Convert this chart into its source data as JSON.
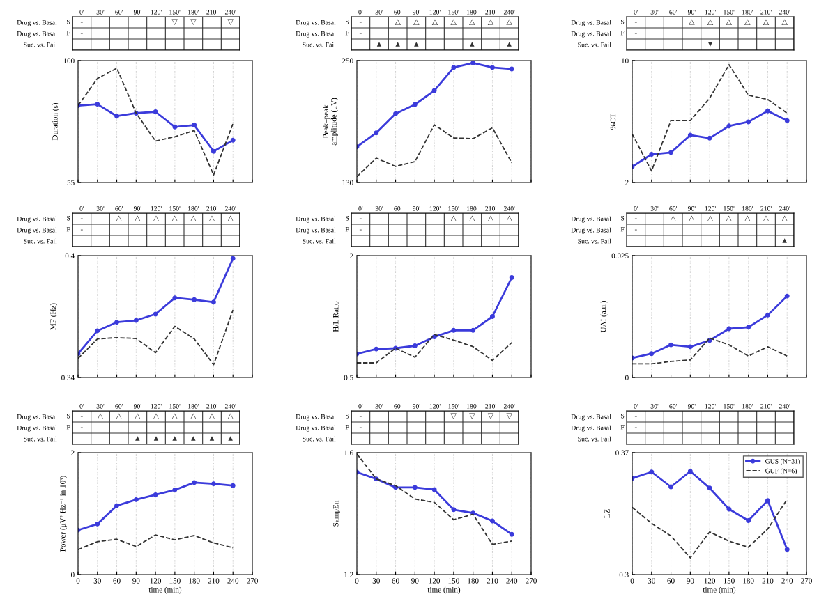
{
  "chart_data": [
    {
      "type": "heatmap",
      "categories": [
        "0'",
        "30'",
        "60'",
        "90'",
        "120'",
        "150'",
        "180'",
        "210'",
        "240'"
      ],
      "y_categories": [
        "Drug vs. Basal",
        "Drug vs. Basal",
        "Suc. vs. Fail"
      ],
      "y2_categories": [
        "S",
        "F",
        null
      ],
      "cells": [
        [
          null,
          null,
          null,
          null,
          null,
          null,
          null,
          null,
          null
        ],
        [
          null,
          null,
          null,
          null,
          null,
          null,
          null,
          null,
          null
        ],
        [
          null,
          null,
          null,
          null,
          null,
          null,
          null,
          null,
          null
        ]
      ],
      "cell_labels": [
        [
          "-",
          null,
          null,
          null,
          null,
          "▽",
          "▽",
          null,
          "▽"
        ],
        [
          "-",
          null,
          null,
          null,
          null,
          null,
          null,
          null,
          null
        ],
        [
          null,
          null,
          null,
          null,
          null,
          null,
          null,
          null,
          null
        ]
      ]
    },
    {
      "type": "line",
      "x": [
        0,
        30,
        60,
        90,
        120,
        150,
        180,
        210,
        240
      ],
      "ylabel": "Duration (s)",
      "xlim": [
        0,
        270
      ],
      "xticks": [
        0,
        30,
        60,
        90,
        120,
        150,
        180,
        210,
        240,
        270
      ],
      "ylim": [
        55,
        100
      ],
      "yticks": [
        55,
        100
      ],
      "grid": "x",
      "tick_labels": "y",
      "series": [
        {
          "color": "#3b3bdb",
          "marker": "circle",
          "line_style": "solid",
          "values": [
            83.4,
            83.9,
            79.5,
            80.6,
            81.1,
            75.5,
            76.2,
            66.5,
            70.6
          ]
        },
        {
          "color": "#333333",
          "marker": "none",
          "line_style": "dashed",
          "values": [
            83.4,
            93.4,
            97.2,
            80.6,
            70.3,
            71.9,
            74.2,
            57.8,
            76.7
          ]
        }
      ]
    },
    {
      "type": "heatmap",
      "categories": [
        "0'",
        "30'",
        "60'",
        "90'",
        "120'",
        "150'",
        "180'",
        "210'",
        "240'"
      ],
      "y_categories": [
        "Drug vs. Basal",
        "Drug vs. Basal",
        "Suc. vs. Fail"
      ],
      "y2_categories": [
        "S",
        "F",
        null
      ],
      "cells": [
        [
          null,
          null,
          null,
          null,
          null,
          null,
          null,
          null,
          null
        ],
        [
          null,
          null,
          null,
          null,
          null,
          null,
          null,
          null,
          null
        ],
        [
          null,
          null,
          null,
          null,
          null,
          null,
          null,
          null,
          null
        ]
      ],
      "cell_labels": [
        [
          "-",
          null,
          "△",
          "△",
          "△",
          "△",
          "△",
          "△",
          "△"
        ],
        [
          "-",
          null,
          null,
          null,
          null,
          null,
          null,
          null,
          null
        ],
        [
          null,
          "▲",
          "▲",
          "▲",
          null,
          null,
          "▲",
          null,
          "▲"
        ]
      ]
    },
    {
      "type": "line",
      "x": [
        0,
        30,
        60,
        90,
        120,
        150,
        180,
        210,
        240
      ],
      "ylabel": "Peak–peak\namplitude (μV)",
      "xlim": [
        0,
        270
      ],
      "xticks": [
        0,
        30,
        60,
        90,
        120,
        150,
        180,
        210,
        240,
        270
      ],
      "ylim": [
        130,
        250
      ],
      "yticks": [
        130,
        250
      ],
      "grid": "x",
      "tick_labels": "y",
      "series": [
        {
          "color": "#3b3bdb",
          "marker": "circle",
          "line_style": "solid",
          "values": [
            165.2,
            178.9,
            197.7,
            206.8,
            220.5,
            243.2,
            247.7,
            243.2,
            241.8
          ]
        },
        {
          "color": "#333333",
          "marker": "none",
          "line_style": "dashed",
          "values": [
            135.7,
            153.9,
            145.9,
            150.5,
            186.8,
            173.9,
            173.2,
            183.9,
            149.3
          ]
        }
      ]
    },
    {
      "type": "heatmap",
      "categories": [
        "0'",
        "30'",
        "60'",
        "90'",
        "120'",
        "150'",
        "180'",
        "210'",
        "240'"
      ],
      "y_categories": [
        "Drug vs. Basal",
        "Drug vs. Basal",
        "Suc. vs. Fail"
      ],
      "y2_categories": [
        "S",
        "F",
        null
      ],
      "cells": [
        [
          null,
          null,
          null,
          null,
          null,
          null,
          null,
          null,
          null
        ],
        [
          null,
          null,
          null,
          null,
          null,
          null,
          null,
          null,
          null
        ],
        [
          null,
          null,
          null,
          null,
          null,
          null,
          null,
          null,
          null
        ]
      ],
      "cell_labels": [
        [
          "-",
          null,
          null,
          "△",
          "△",
          "△",
          "△",
          "△",
          "△"
        ],
        [
          "-",
          null,
          null,
          null,
          null,
          null,
          null,
          null,
          null
        ],
        [
          null,
          null,
          null,
          null,
          "▼",
          null,
          null,
          null,
          null
        ]
      ]
    },
    {
      "type": "line",
      "x": [
        0,
        30,
        60,
        90,
        120,
        150,
        180,
        210,
        240
      ],
      "ylabel": "%CT",
      "xlim": [
        0,
        270
      ],
      "xticks": [
        0,
        30,
        60,
        90,
        120,
        150,
        180,
        210,
        240,
        270
      ],
      "ylim": [
        2,
        10
      ],
      "yticks": [
        2,
        10
      ],
      "grid": "x",
      "tick_labels": "y",
      "series": [
        {
          "color": "#3b3bdb",
          "marker": "circle",
          "line_style": "solid",
          "values": [
            3.03,
            3.85,
            3.97,
            5.11,
            4.91,
            5.71,
            5.98,
            6.7,
            6.06
          ]
        },
        {
          "color": "#333333",
          "marker": "none",
          "line_style": "dashed",
          "values": [
            5.18,
            2.76,
            6.06,
            6.06,
            7.53,
            9.73,
            7.73,
            7.45,
            6.55
          ]
        }
      ]
    },
    {
      "type": "heatmap",
      "categories": [
        "0'",
        "30'",
        "60'",
        "90'",
        "120'",
        "150'",
        "180'",
        "210'",
        "240'"
      ],
      "y_categories": [
        "Drug vs. Basal",
        "Drug vs. Basal",
        "Suc. vs. Fail"
      ],
      "y2_categories": [
        "S",
        "F",
        null
      ],
      "cells": [
        [
          null,
          null,
          null,
          null,
          null,
          null,
          null,
          null,
          null
        ],
        [
          null,
          null,
          null,
          null,
          null,
          null,
          null,
          null,
          null
        ],
        [
          null,
          null,
          null,
          null,
          null,
          null,
          null,
          null,
          null
        ]
      ],
      "cell_labels": [
        [
          "-",
          null,
          "△",
          "△",
          "△",
          "△",
          "△",
          "△",
          "△"
        ],
        [
          "-",
          null,
          null,
          null,
          null,
          null,
          null,
          null,
          null
        ],
        [
          null,
          null,
          null,
          null,
          null,
          null,
          null,
          null,
          null
        ]
      ]
    },
    {
      "type": "line",
      "x": [
        0,
        30,
        60,
        90,
        120,
        150,
        180,
        210,
        240
      ],
      "ylabel": "MF (Hz)",
      "xlim": [
        0,
        270
      ],
      "xticks": [
        0,
        30,
        60,
        90,
        120,
        150,
        180,
        210,
        240,
        270
      ],
      "ylim": [
        0.34,
        0.4
      ],
      "yticks": [
        0.34,
        0.4
      ],
      "grid": "x",
      "tick_labels": "y",
      "series": [
        {
          "color": "#3b3bdb",
          "marker": "circle",
          "line_style": "solid",
          "values": [
            0.3517,
            0.363,
            0.3672,
            0.3681,
            0.3712,
            0.3792,
            0.3783,
            0.3771,
            0.3986
          ]
        },
        {
          "color": "#333333",
          "marker": "none",
          "line_style": "dashed",
          "values": [
            0.3494,
            0.359,
            0.3596,
            0.3592,
            0.3522,
            0.3652,
            0.359,
            0.3463,
            0.3732
          ]
        }
      ]
    },
    {
      "type": "heatmap",
      "categories": [
        "0'",
        "30'",
        "60'",
        "90'",
        "120'",
        "150'",
        "180'",
        "210'",
        "240'"
      ],
      "y_categories": [
        "Drug vs. Basal",
        "Drug vs. Basal",
        "Suc. vs. Fail"
      ],
      "y2_categories": [
        "S",
        "F",
        null
      ],
      "cells": [
        [
          null,
          null,
          null,
          null,
          null,
          null,
          null,
          null,
          null
        ],
        [
          null,
          null,
          null,
          null,
          null,
          null,
          null,
          null,
          null
        ],
        [
          null,
          null,
          null,
          null,
          null,
          null,
          null,
          null,
          null
        ]
      ],
      "cell_labels": [
        [
          "-",
          null,
          null,
          null,
          null,
          "△",
          "△",
          "△",
          "△"
        ],
        [
          "-",
          null,
          null,
          null,
          null,
          null,
          null,
          null,
          null
        ],
        [
          null,
          null,
          null,
          null,
          null,
          null,
          null,
          null,
          null
        ]
      ]
    },
    {
      "type": "line",
      "x": [
        0,
        30,
        60,
        90,
        120,
        150,
        180,
        210,
        240
      ],
      "ylabel": "H/L Ratio",
      "xlim": [
        0,
        270
      ],
      "xticks": [
        0,
        30,
        60,
        90,
        120,
        150,
        180,
        210,
        240,
        270
      ],
      "ylim": [
        0.5,
        2
      ],
      "yticks": [
        0.5,
        2
      ],
      "grid": "x",
      "tick_labels": "y",
      "series": [
        {
          "color": "#3b3bdb",
          "marker": "circle",
          "line_style": "solid",
          "values": [
            0.79,
            0.85,
            0.86,
            0.89,
            1.0,
            1.08,
            1.08,
            1.25,
            1.73
          ]
        },
        {
          "color": "#333333",
          "marker": "none",
          "line_style": "dashed",
          "values": [
            0.68,
            0.68,
            0.86,
            0.75,
            1.03,
            0.96,
            0.88,
            0.71,
            0.93
          ]
        }
      ]
    },
    {
      "type": "heatmap",
      "categories": [
        "0'",
        "30'",
        "60'",
        "90'",
        "120'",
        "150'",
        "180'",
        "210'",
        "240'"
      ],
      "y_categories": [
        "Drug vs. Basal",
        "Drug vs. Basal",
        "Suc. vs. Fail"
      ],
      "y2_categories": [
        "S",
        "F",
        null
      ],
      "cells": [
        [
          null,
          null,
          null,
          null,
          null,
          null,
          null,
          null,
          null
        ],
        [
          null,
          null,
          null,
          null,
          null,
          null,
          null,
          null,
          null
        ],
        [
          null,
          null,
          null,
          null,
          null,
          null,
          null,
          null,
          null
        ]
      ],
      "cell_labels": [
        [
          "-",
          null,
          "△",
          "△",
          "△",
          "△",
          "△",
          "△",
          "△"
        ],
        [
          "-",
          null,
          null,
          null,
          null,
          null,
          null,
          null,
          null
        ],
        [
          null,
          null,
          null,
          null,
          null,
          null,
          null,
          null,
          "▲"
        ]
      ]
    },
    {
      "type": "line",
      "x": [
        0,
        30,
        60,
        90,
        120,
        150,
        180,
        210,
        240
      ],
      "ylabel": "UAI (a.u.)",
      "xlim": [
        0,
        270
      ],
      "xticks": [
        0,
        30,
        60,
        90,
        120,
        150,
        180,
        210,
        240,
        270
      ],
      "ylim": [
        0,
        0.025
      ],
      "yticks": [
        0,
        0.025
      ],
      "grid": "x",
      "tick_labels": "y",
      "series": [
        {
          "color": "#3b3bdb",
          "marker": "circle",
          "line_style": "solid",
          "values": [
            0.004,
            0.0049,
            0.0067,
            0.0063,
            0.0076,
            0.01,
            0.0103,
            0.0128,
            0.0167
          ]
        },
        {
          "color": "#333333",
          "marker": "none",
          "line_style": "dashed",
          "values": [
            0.0028,
            0.0028,
            0.0033,
            0.0036,
            0.0081,
            0.0067,
            0.0044,
            0.0063,
            0.0044
          ]
        }
      ]
    },
    {
      "type": "heatmap",
      "categories": [
        "0'",
        "30'",
        "60'",
        "90'",
        "120'",
        "150'",
        "180'",
        "210'",
        "240'"
      ],
      "y_categories": [
        "Drug vs. Basal",
        "Drug vs. Basal",
        "Suc. vs. Fail"
      ],
      "y2_categories": [
        "S",
        "F",
        null
      ],
      "cells": [
        [
          null,
          null,
          null,
          null,
          null,
          null,
          null,
          null,
          null
        ],
        [
          null,
          null,
          null,
          null,
          null,
          null,
          null,
          null,
          null
        ],
        [
          null,
          null,
          null,
          null,
          null,
          null,
          null,
          null,
          null
        ]
      ],
      "cell_labels": [
        [
          "-",
          "△",
          "△",
          "△",
          "△",
          "△",
          "△",
          "△",
          "△"
        ],
        [
          "-",
          null,
          null,
          null,
          null,
          null,
          null,
          null,
          null
        ],
        [
          null,
          null,
          null,
          "▲",
          "▲",
          "▲",
          "▲",
          "▲",
          "▲"
        ]
      ]
    },
    {
      "type": "line",
      "x": [
        0,
        30,
        60,
        90,
        120,
        150,
        180,
        210,
        240
      ],
      "xlabel": "time (min)",
      "ylabel": "Power (μV² Hz⁻¹ in 10³)",
      "xlim": [
        0,
        270
      ],
      "xticks": [
        0,
        30,
        60,
        90,
        120,
        150,
        180,
        210,
        240,
        270
      ],
      "ylim": [
        0,
        2
      ],
      "yticks": [
        0,
        2
      ],
      "grid": "x",
      "series": [
        {
          "color": "#3b3bdb",
          "marker": "circle",
          "line_style": "solid",
          "values": [
            0.73,
            0.83,
            1.13,
            1.23,
            1.31,
            1.39,
            1.51,
            1.49,
            1.46
          ]
        },
        {
          "color": "#333333",
          "marker": "none",
          "line_style": "dashed",
          "values": [
            0.41,
            0.54,
            0.58,
            0.46,
            0.65,
            0.57,
            0.64,
            0.52,
            0.44
          ]
        }
      ]
    },
    {
      "type": "heatmap",
      "categories": [
        "0'",
        "30'",
        "60'",
        "90'",
        "120'",
        "150'",
        "180'",
        "210'",
        "240'"
      ],
      "y_categories": [
        "Drug vs. Basal",
        "Drug vs. Basal",
        "Suc. vs. Fail"
      ],
      "y2_categories": [
        "S",
        "F",
        null
      ],
      "cells": [
        [
          null,
          null,
          null,
          null,
          null,
          null,
          null,
          null,
          null
        ],
        [
          null,
          null,
          null,
          null,
          null,
          null,
          null,
          null,
          null
        ],
        [
          null,
          null,
          null,
          null,
          null,
          null,
          null,
          null,
          null
        ]
      ],
      "cell_labels": [
        [
          "-",
          null,
          null,
          null,
          null,
          "▽",
          "▽",
          "▽",
          "▽"
        ],
        [
          "-",
          null,
          null,
          null,
          null,
          null,
          null,
          null,
          null
        ],
        [
          null,
          null,
          null,
          null,
          null,
          null,
          null,
          null,
          null
        ]
      ]
    },
    {
      "type": "line",
      "x": [
        0,
        30,
        60,
        90,
        120,
        150,
        180,
        210,
        240
      ],
      "xlabel": "time (min)",
      "ylabel": "SampEn",
      "xlim": [
        0,
        270
      ],
      "xticks": [
        0,
        30,
        60,
        90,
        120,
        150,
        180,
        210,
        240,
        270
      ],
      "ylim": [
        1.2,
        1.6
      ],
      "yticks": [
        1.2,
        1.6
      ],
      "grid": "x",
      "series": [
        {
          "color": "#3b3bdb",
          "marker": "circle",
          "line_style": "solid",
          "values": [
            1.536,
            1.514,
            1.486,
            1.486,
            1.479,
            1.413,
            1.402,
            1.376,
            1.332
          ]
        },
        {
          "color": "#333333",
          "marker": "none",
          "line_style": "dashed",
          "values": [
            1.596,
            1.514,
            1.492,
            1.448,
            1.437,
            1.38,
            1.398,
            1.299,
            1.31
          ]
        }
      ]
    },
    {
      "type": "heatmap",
      "categories": [
        "0'",
        "30'",
        "60'",
        "90'",
        "120'",
        "150'",
        "180'",
        "210'",
        "240'"
      ],
      "y_categories": [
        "Drug vs. Basal",
        "Drug vs. Basal",
        "Suc. vs. Fail"
      ],
      "y2_categories": [
        "S",
        "F",
        null
      ],
      "cells": [
        [
          null,
          null,
          null,
          null,
          null,
          null,
          null,
          null,
          null
        ],
        [
          null,
          null,
          null,
          null,
          null,
          null,
          null,
          null,
          null
        ],
        [
          null,
          null,
          null,
          null,
          null,
          null,
          null,
          null,
          null
        ]
      ],
      "cell_labels": [
        [
          "-",
          null,
          null,
          null,
          null,
          null,
          null,
          null,
          null
        ],
        [
          "-",
          null,
          null,
          null,
          null,
          null,
          null,
          null,
          null
        ],
        [
          null,
          null,
          null,
          null,
          null,
          null,
          null,
          null,
          null
        ]
      ]
    },
    {
      "type": "line",
      "x": [
        0,
        30,
        60,
        90,
        120,
        150,
        180,
        210,
        240
      ],
      "xlabel": "time (min)",
      "ylabel": "LZ",
      "xlim": [
        0,
        270
      ],
      "xticks": [
        0,
        30,
        60,
        90,
        120,
        150,
        180,
        210,
        240,
        270
      ],
      "ylim": [
        0.3,
        0.37
      ],
      "yticks": [
        0.3,
        0.37
      ],
      "grid": "x",
      "legend": "top right",
      "series": [
        {
          "name": "GUS (N=31)",
          "color": "#3b3bdb",
          "marker": "circle",
          "line_style": "solid",
          "values": [
            0.3553,
            0.3589,
            0.3504,
            0.3593,
            0.3497,
            0.3376,
            0.331,
            0.3425,
            0.3144
          ]
        },
        {
          "name": "GUF (N=6)",
          "color": "#333333",
          "marker": "none",
          "line_style": "dashed",
          "values": [
            0.3386,
            0.3294,
            0.3222,
            0.3096,
            0.3245,
            0.3192,
            0.3157,
            0.3262,
            0.3432
          ]
        }
      ]
    }
  ]
}
